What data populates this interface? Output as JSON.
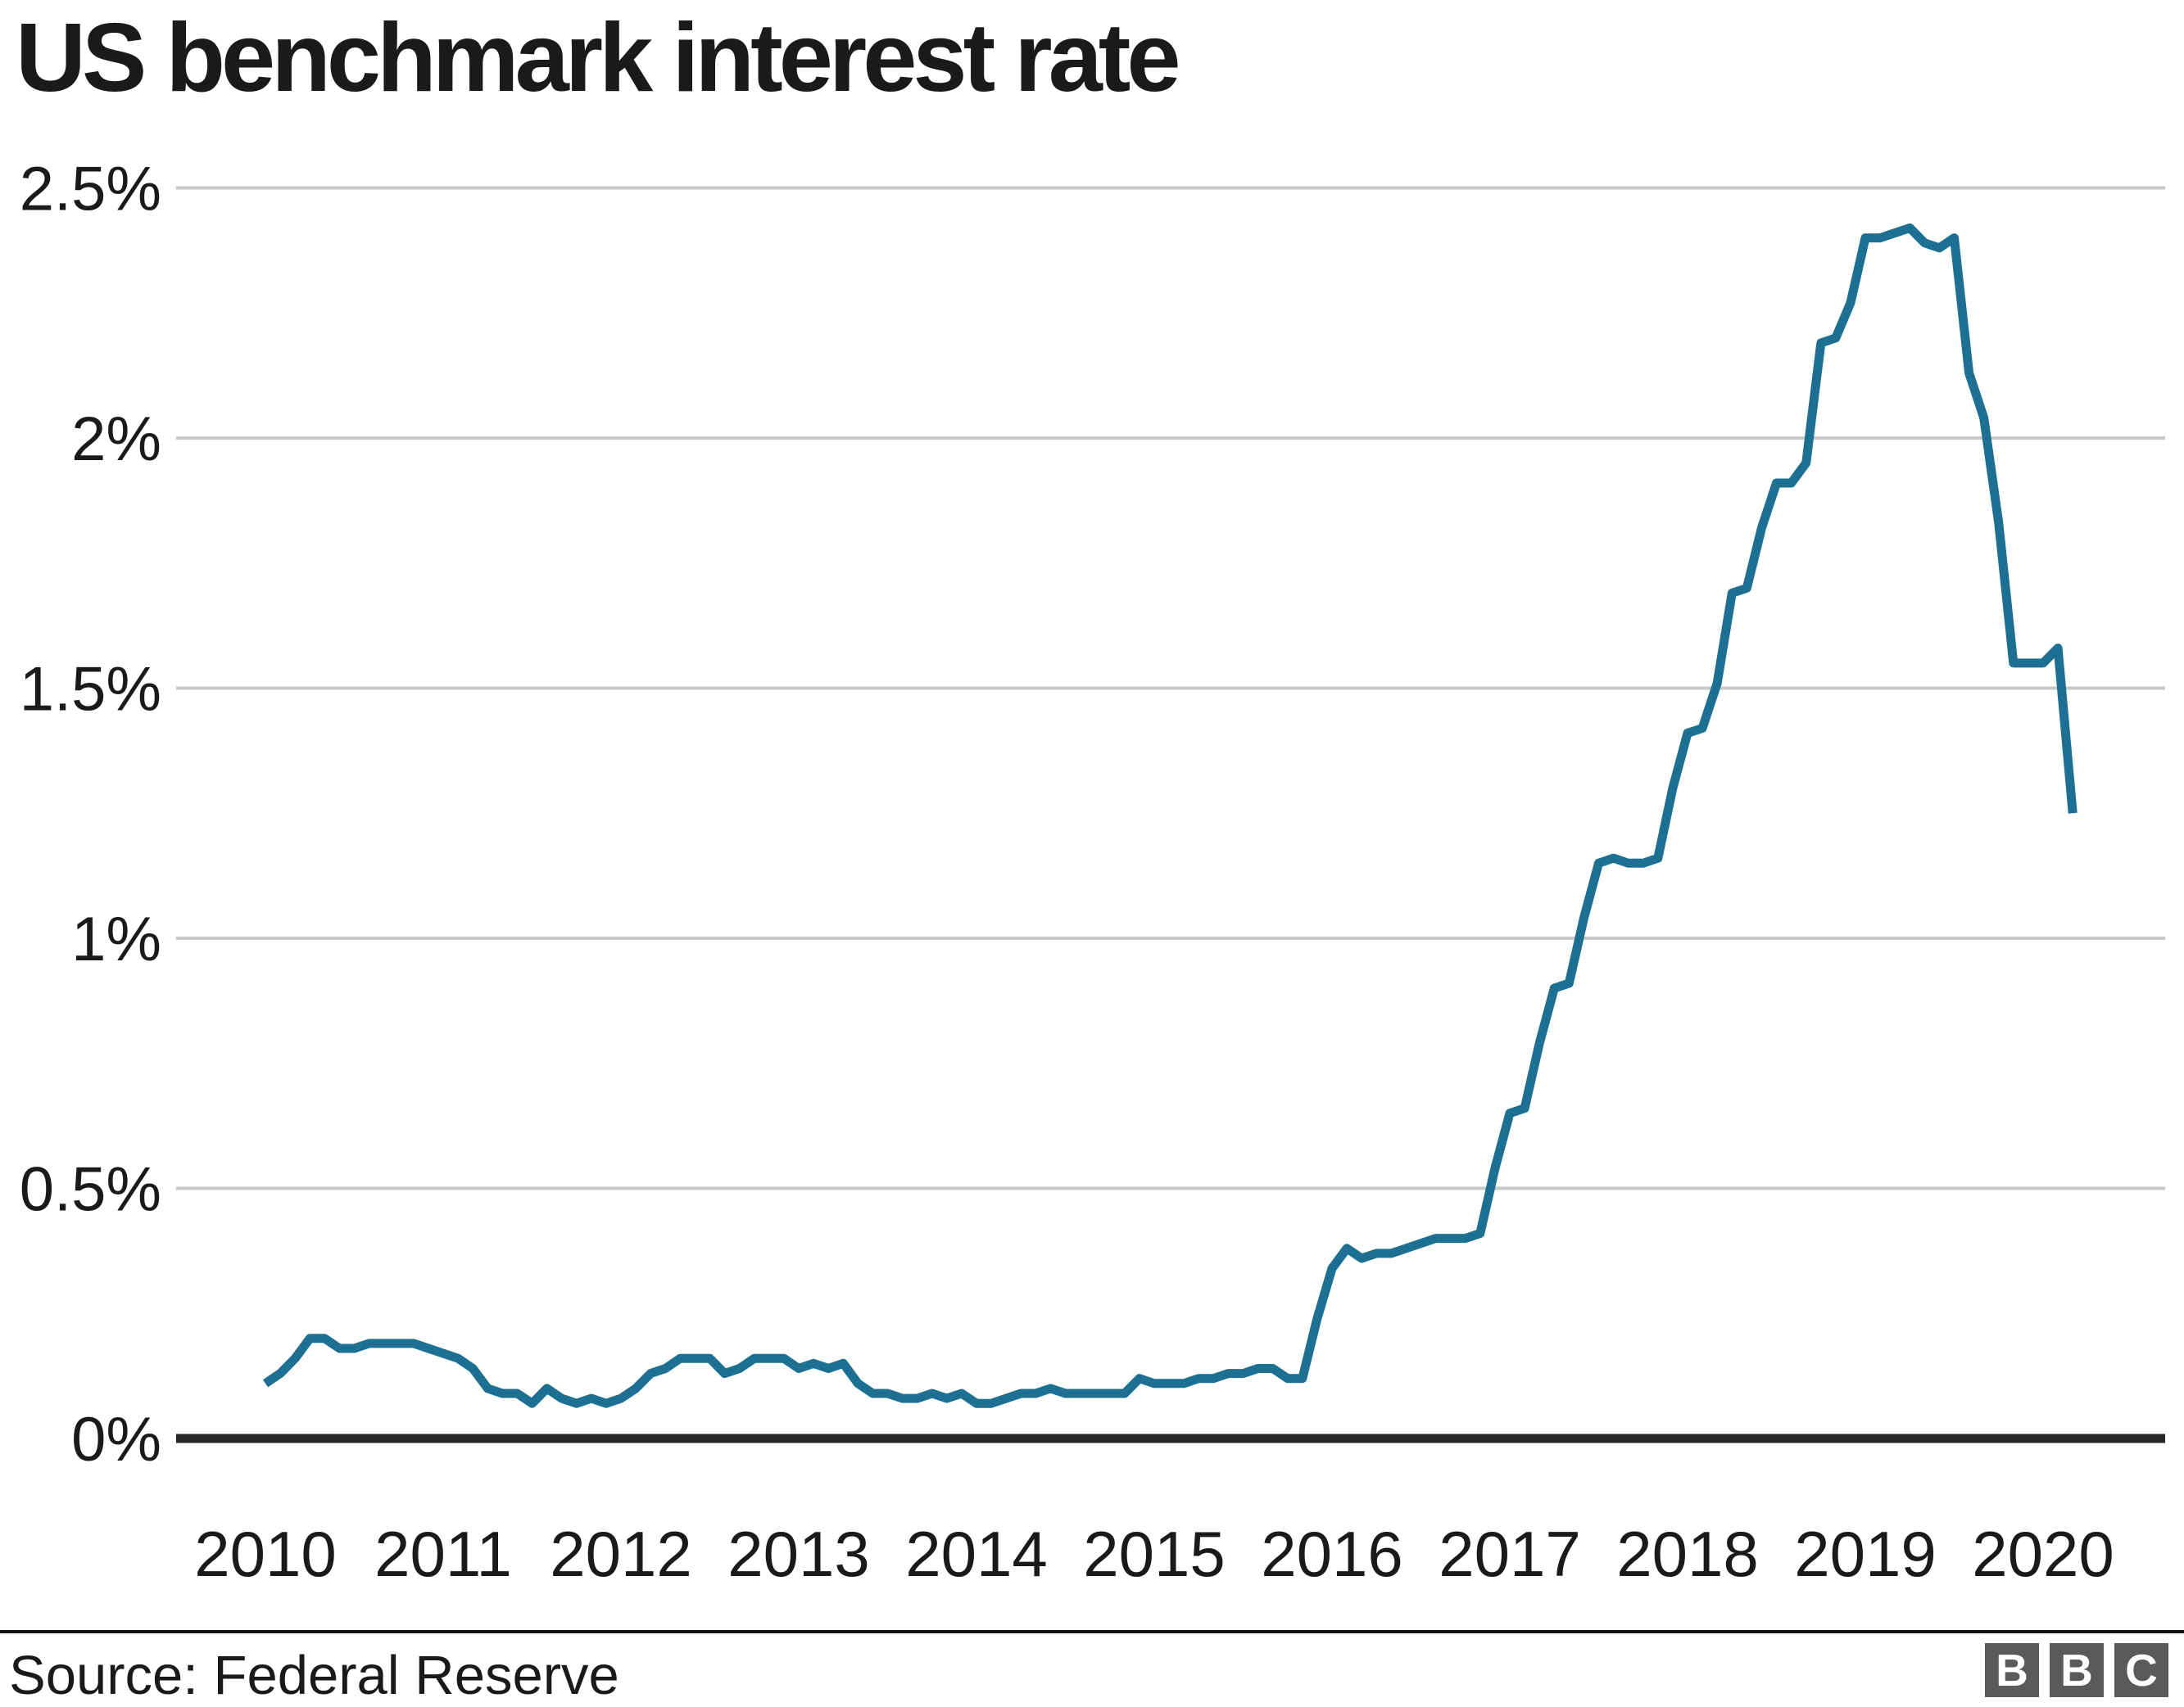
{
  "title": "US benchmark interest rate",
  "source": "Source: Federal Reserve",
  "logo": {
    "letters": [
      "B",
      "B",
      "C"
    ]
  },
  "colors": {
    "line": "#1d7091",
    "grid": "#c8c8c8",
    "axis": "#262626",
    "text": "#1a1a1a",
    "logo_bg": "#5a5a5b"
  },
  "chart_data": {
    "type": "line",
    "title": "US benchmark interest rate",
    "xlabel": "",
    "ylabel": "",
    "unit": "%",
    "grid": "horizontal",
    "legend": "none",
    "ylim": [
      0,
      2.5
    ],
    "y_ticks": [
      {
        "value": 0,
        "label": "0%"
      },
      {
        "value": 0.5,
        "label": "0.5%"
      },
      {
        "value": 1,
        "label": "1%"
      },
      {
        "value": 1.5,
        "label": "1.5%"
      },
      {
        "value": 2,
        "label": "2%"
      },
      {
        "value": 2.5,
        "label": "2.5%"
      }
    ],
    "x_tick_labels": [
      "2010",
      "2011",
      "2012",
      "2013",
      "2014",
      "2015",
      "2016",
      "2017",
      "2018",
      "2019",
      "2020"
    ],
    "x_start": "2010-01",
    "x_end": "2020-03",
    "series": [
      {
        "name": "US benchmark interest rate",
        "cadence": "monthly",
        "values": [
          0.11,
          0.13,
          0.16,
          0.2,
          0.2,
          0.18,
          0.18,
          0.19,
          0.19,
          0.19,
          0.19,
          0.18,
          0.17,
          0.16,
          0.14,
          0.1,
          0.09,
          0.09,
          0.07,
          0.1,
          0.08,
          0.07,
          0.08,
          0.07,
          0.08,
          0.1,
          0.13,
          0.14,
          0.16,
          0.16,
          0.16,
          0.13,
          0.14,
          0.16,
          0.16,
          0.16,
          0.14,
          0.15,
          0.14,
          0.15,
          0.11,
          0.09,
          0.09,
          0.08,
          0.08,
          0.09,
          0.08,
          0.09,
          0.07,
          0.07,
          0.08,
          0.09,
          0.09,
          0.1,
          0.09,
          0.09,
          0.09,
          0.09,
          0.09,
          0.12,
          0.11,
          0.11,
          0.11,
          0.12,
          0.12,
          0.13,
          0.13,
          0.14,
          0.14,
          0.12,
          0.12,
          0.24,
          0.34,
          0.38,
          0.36,
          0.37,
          0.37,
          0.38,
          0.39,
          0.4,
          0.4,
          0.4,
          0.41,
          0.54,
          0.65,
          0.66,
          0.79,
          0.9,
          0.91,
          1.04,
          1.15,
          1.16,
          1.15,
          1.15,
          1.16,
          1.3,
          1.41,
          1.42,
          1.51,
          1.69,
          1.7,
          1.82,
          1.91,
          1.91,
          1.95,
          2.19,
          2.2,
          2.27,
          2.4,
          2.4,
          2.41,
          2.42,
          2.39,
          2.38,
          2.4,
          2.13,
          2.04,
          1.83,
          1.55,
          1.55,
          1.55,
          1.58,
          1.25
        ]
      }
    ]
  }
}
